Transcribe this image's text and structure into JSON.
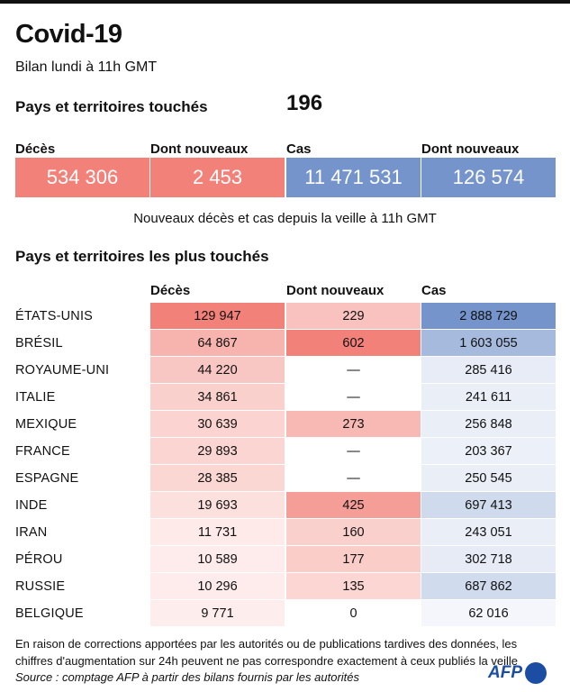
{
  "title": "Covid-19",
  "subtitle": "Bilan lundi à 11h GMT",
  "countries_affected": {
    "label": "Pays et territoires touchés",
    "value": "196"
  },
  "totals": [
    {
      "label": "Décès",
      "value": "534 306",
      "color": "#f28179"
    },
    {
      "label": "Dont nouveaux",
      "value": "2 453",
      "color": "#f28179"
    },
    {
      "label": "Cas",
      "value": "11 471 531",
      "color": "#7594cc"
    },
    {
      "label": "Dont nouveaux",
      "value": "126 574",
      "color": "#7594cc"
    }
  ],
  "totals_note": "Nouveaux décès et cas depuis la veille à 11h GMT",
  "table": {
    "title": "Pays et territoires les plus touchés",
    "columns": [
      "Décès",
      "Dont nouveaux",
      "Cas"
    ],
    "rows": [
      {
        "country": "ÉTATS-UNIS",
        "deaths": "129 947",
        "new_deaths": "229",
        "cases": "2 888 729",
        "d": 129947,
        "n": 229,
        "c": 2888729
      },
      {
        "country": "BRÉSIL",
        "deaths": "64 867",
        "new_deaths": "602",
        "cases": "1 603 055",
        "d": 64867,
        "n": 602,
        "c": 1603055
      },
      {
        "country": "ROYAUME-UNI",
        "deaths": "44 220",
        "new_deaths": "—",
        "cases": "285 416",
        "d": 44220,
        "n": 0,
        "c": 285416
      },
      {
        "country": "ITALIE",
        "deaths": "34 861",
        "new_deaths": "—",
        "cases": "241 611",
        "d": 34861,
        "n": 0,
        "c": 241611
      },
      {
        "country": "MEXIQUE",
        "deaths": "30 639",
        "new_deaths": "273",
        "cases": "256 848",
        "d": 30639,
        "n": 273,
        "c": 256848
      },
      {
        "country": "FRANCE",
        "deaths": "29 893",
        "new_deaths": "—",
        "cases": "203 367",
        "d": 29893,
        "n": 0,
        "c": 203367
      },
      {
        "country": "ESPAGNE",
        "deaths": "28 385",
        "new_deaths": "—",
        "cases": "250 545",
        "d": 28385,
        "n": 0,
        "c": 250545
      },
      {
        "country": "INDE",
        "deaths": "19 693",
        "new_deaths": "425",
        "cases": "697 413",
        "d": 19693,
        "n": 425,
        "c": 697413
      },
      {
        "country": "IRAN",
        "deaths": "11 731",
        "new_deaths": "160",
        "cases": "243 051",
        "d": 11731,
        "n": 160,
        "c": 243051
      },
      {
        "country": "PÉROU",
        "deaths": "10 589",
        "new_deaths": "177",
        "cases": "302 718",
        "d": 10589,
        "n": 177,
        "c": 302718
      },
      {
        "country": "RUSSIE",
        "deaths": "10 296",
        "new_deaths": "135",
        "cases": "687 862",
        "d": 10296,
        "n": 135,
        "c": 687862
      },
      {
        "country": "BELGIQUE",
        "deaths": "9 771",
        "new_deaths": "0",
        "cases": "62 016",
        "d": 9771,
        "n": 0,
        "c": 62016
      }
    ]
  },
  "footnote": "En raison de corrections apportées par les autorités ou de publications tardives des données, les chiffres d'augmentation sur 24h peuvent ne pas correspondre exactement à ceux publiés la veille",
  "source": "Source : comptage AFP à partir des bilans fournis par les autorités",
  "logo": "AFP"
}
